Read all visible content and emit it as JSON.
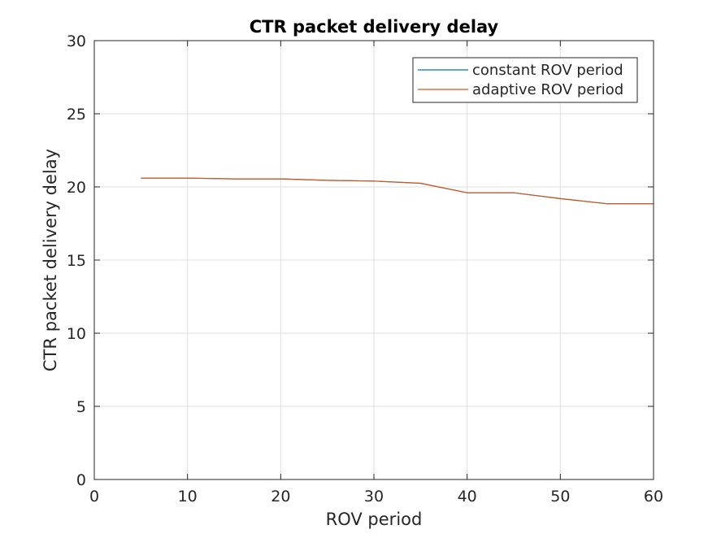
{
  "chart_data": {
    "type": "line",
    "title": "CTR packet delivery delay",
    "xlabel": "ROV period",
    "ylabel": "CTR packet delivery delay",
    "xlim": [
      0,
      60
    ],
    "ylim": [
      0,
      30
    ],
    "xticks": [
      0,
      10,
      20,
      30,
      40,
      50,
      60
    ],
    "yticks": [
      0,
      5,
      10,
      15,
      20,
      25,
      30
    ],
    "grid": true,
    "legend_position": "top-right",
    "series": [
      {
        "name": "constant ROV period",
        "color": "#0072BD",
        "x": [
          5,
          10,
          15,
          20,
          25,
          30,
          35,
          40,
          45,
          50,
          55,
          60
        ],
        "y": [
          20.6,
          20.6,
          20.55,
          20.55,
          20.45,
          20.4,
          20.25,
          19.6,
          19.6,
          19.2,
          18.85,
          18.85
        ]
      },
      {
        "name": "adaptive ROV period",
        "color": "#D95319",
        "x": [
          5,
          10,
          15,
          20,
          25,
          30,
          35,
          40,
          45,
          50,
          55,
          60
        ],
        "y": [
          20.6,
          20.6,
          20.55,
          20.55,
          20.45,
          20.4,
          20.25,
          19.6,
          19.6,
          19.2,
          18.85,
          18.85
        ]
      }
    ]
  }
}
